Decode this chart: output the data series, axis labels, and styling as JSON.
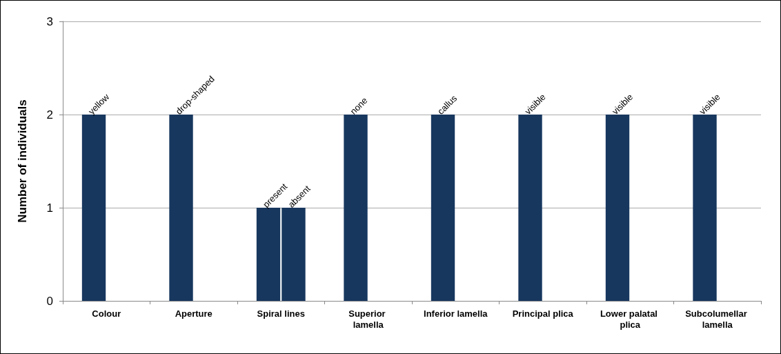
{
  "chart_data": {
    "type": "bar",
    "ylabel": "Number of individuals",
    "categories": [
      "Colour",
      "Aperture",
      "Spiral lines",
      "Superior lamella",
      "Inferior lamella",
      "Principal plica",
      "Lower palatal plica",
      "Subcolumellar lamella"
    ],
    "series": [
      {
        "color": "#17375e",
        "values": [
          2,
          2,
          1,
          2,
          2,
          2,
          2,
          2
        ],
        "value_labels": [
          "yellow",
          "drop-shaped",
          "present",
          "none",
          "callus",
          "visible",
          "visible",
          "visible"
        ]
      },
      {
        "color": "#17375e",
        "values": [
          null,
          null,
          1,
          null,
          null,
          null,
          null,
          null
        ],
        "value_labels": [
          null,
          null,
          "absent",
          null,
          null,
          null,
          null,
          null
        ]
      }
    ],
    "ylim": [
      0,
      3
    ],
    "yticks": [
      0,
      1,
      2,
      3
    ],
    "grid": "y"
  }
}
